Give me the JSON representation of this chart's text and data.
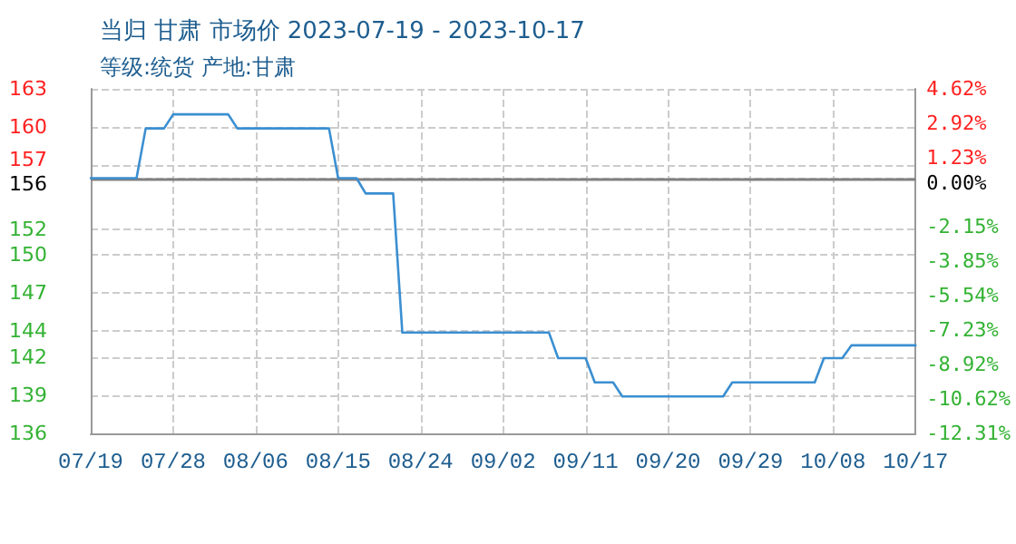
{
  "chart_data": {
    "type": "step",
    "title": "当归 甘肃 市场价 2023-07-19 - 2023-10-17",
    "subtitle": "等级:统货 产地:甘肃",
    "x": [
      "2023-07-19",
      "2023-07-24",
      "2023-07-25",
      "2023-07-27",
      "2023-07-28",
      "2023-08-03",
      "2023-08-04",
      "2023-08-14",
      "2023-08-15",
      "2023-08-17",
      "2023-08-18",
      "2023-08-21",
      "2023-08-22",
      "2023-09-07",
      "2023-09-08",
      "2023-09-11",
      "2023-09-12",
      "2023-09-14",
      "2023-09-15",
      "2023-09-26",
      "2023-09-27",
      "2023-10-06",
      "2023-10-07",
      "2023-10-09",
      "2023-10-10",
      "2023-10-17"
    ],
    "series": [
      {
        "color": "#3b8fd1",
        "values": [
          156,
          156,
          159.9,
          159.9,
          161.0,
          161.0,
          159.9,
          159.9,
          156,
          156,
          154.8,
          154.8,
          143.9,
          143.9,
          141.9,
          141.9,
          140.0,
          140.0,
          138.9,
          138.9,
          140.0,
          140.0,
          141.9,
          141.9,
          142.9,
          142.9
        ]
      }
    ],
    "xlim": [
      "2023-07-19",
      "2023-10-17"
    ],
    "xticks": [
      {
        "value": "2023-07-19",
        "label": "07/19"
      },
      {
        "value": "2023-07-28",
        "label": "07/28"
      },
      {
        "value": "2023-08-06",
        "label": "08/06"
      },
      {
        "value": "2023-08-15",
        "label": "08/15"
      },
      {
        "value": "2023-08-24",
        "label": "08/24"
      },
      {
        "value": "2023-09-02",
        "label": "09/02"
      },
      {
        "value": "2023-09-11",
        "label": "09/11"
      },
      {
        "value": "2023-09-20",
        "label": "09/20"
      },
      {
        "value": "2023-09-29",
        "label": "09/29"
      },
      {
        "value": "2023-10-08",
        "label": "10/08"
      },
      {
        "value": "2023-10-17",
        "label": "10/17"
      }
    ],
    "ylim": [
      136,
      163
    ],
    "yticks": [
      136,
      139,
      142,
      144,
      147,
      150,
      152,
      156,
      157,
      160,
      163
    ],
    "y2lim": [
      -12.31,
      4.62
    ],
    "y2ticks": [
      {
        "value": -12.31,
        "label": "-12.31%"
      },
      {
        "value": -10.62,
        "label": "-10.62%"
      },
      {
        "value": -8.92,
        "label": "-8.92%"
      },
      {
        "value": -7.23,
        "label": "-7.23%"
      },
      {
        "value": -5.54,
        "label": "-5.54%"
      },
      {
        "value": -3.85,
        "label": "-3.85%"
      },
      {
        "value": -2.15,
        "label": "-2.15%"
      },
      {
        "value": 0,
        "label": "0.00%"
      },
      {
        "value": 1.23,
        "label": "1.23%"
      },
      {
        "value": 2.92,
        "label": "2.92%"
      },
      {
        "value": 4.62,
        "label": "4.62%"
      }
    ],
    "ref_lines": [
      {
        "axis": "y",
        "value": 156,
        "color": "#808080"
      }
    ],
    "grid": true,
    "marker": "none",
    "line_style": "solid"
  }
}
